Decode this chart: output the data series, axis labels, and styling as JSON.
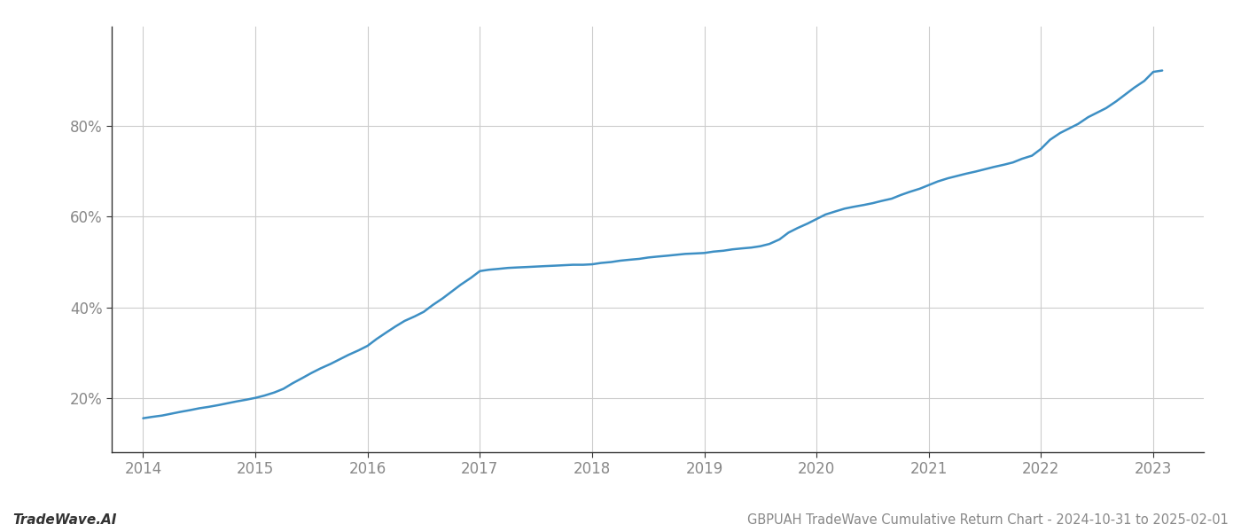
{
  "title": "GBPUAH TradeWave Cumulative Return Chart - 2024-10-31 to 2025-02-01",
  "watermark": "TradeWave.AI",
  "line_color": "#3d8fc4",
  "line_width": 1.8,
  "background_color": "#ffffff",
  "grid_color": "#cccccc",
  "x_years": [
    2014.0,
    2014.08,
    2014.17,
    2014.25,
    2014.33,
    2014.42,
    2014.5,
    2014.58,
    2014.67,
    2014.75,
    2014.83,
    2014.92,
    2015.0,
    2015.08,
    2015.17,
    2015.25,
    2015.33,
    2015.42,
    2015.5,
    2015.58,
    2015.67,
    2015.75,
    2015.83,
    2015.92,
    2016.0,
    2016.08,
    2016.17,
    2016.25,
    2016.33,
    2016.42,
    2016.5,
    2016.58,
    2016.67,
    2016.75,
    2016.83,
    2016.92,
    2017.0,
    2017.08,
    2017.17,
    2017.25,
    2017.33,
    2017.42,
    2017.5,
    2017.58,
    2017.67,
    2017.75,
    2017.83,
    2017.92,
    2018.0,
    2018.08,
    2018.17,
    2018.25,
    2018.33,
    2018.42,
    2018.5,
    2018.58,
    2018.67,
    2018.75,
    2018.83,
    2018.92,
    2019.0,
    2019.08,
    2019.17,
    2019.25,
    2019.33,
    2019.42,
    2019.5,
    2019.58,
    2019.67,
    2019.75,
    2019.83,
    2019.92,
    2020.0,
    2020.08,
    2020.17,
    2020.25,
    2020.33,
    2020.42,
    2020.5,
    2020.58,
    2020.67,
    2020.75,
    2020.83,
    2020.92,
    2021.0,
    2021.08,
    2021.17,
    2021.25,
    2021.33,
    2021.42,
    2021.5,
    2021.58,
    2021.67,
    2021.75,
    2021.83,
    2021.92,
    2022.0,
    2022.08,
    2022.17,
    2022.25,
    2022.33,
    2022.42,
    2022.5,
    2022.58,
    2022.67,
    2022.75,
    2022.83,
    2022.92,
    2023.0,
    2023.08
  ],
  "y_values": [
    15.5,
    15.8,
    16.1,
    16.5,
    16.9,
    17.3,
    17.7,
    18.0,
    18.4,
    18.8,
    19.2,
    19.6,
    20.0,
    20.5,
    21.2,
    22.0,
    23.2,
    24.4,
    25.5,
    26.5,
    27.5,
    28.5,
    29.5,
    30.5,
    31.5,
    33.0,
    34.5,
    35.8,
    37.0,
    38.0,
    39.0,
    40.5,
    42.0,
    43.5,
    45.0,
    46.5,
    48.0,
    48.3,
    48.5,
    48.7,
    48.8,
    48.9,
    49.0,
    49.1,
    49.2,
    49.3,
    49.4,
    49.4,
    49.5,
    49.8,
    50.0,
    50.3,
    50.5,
    50.7,
    51.0,
    51.2,
    51.4,
    51.6,
    51.8,
    51.9,
    52.0,
    52.3,
    52.5,
    52.8,
    53.0,
    53.2,
    53.5,
    54.0,
    55.0,
    56.5,
    57.5,
    58.5,
    59.5,
    60.5,
    61.2,
    61.8,
    62.2,
    62.6,
    63.0,
    63.5,
    64.0,
    64.8,
    65.5,
    66.2,
    67.0,
    67.8,
    68.5,
    69.0,
    69.5,
    70.0,
    70.5,
    71.0,
    71.5,
    72.0,
    72.8,
    73.5,
    75.0,
    77.0,
    78.5,
    79.5,
    80.5,
    82.0,
    83.0,
    84.0,
    85.5,
    87.0,
    88.5,
    90.0,
    92.0,
    92.3
  ],
  "yticks": [
    20,
    40,
    60,
    80
  ],
  "xticks": [
    2014,
    2015,
    2016,
    2017,
    2018,
    2019,
    2020,
    2021,
    2022,
    2023
  ],
  "xlim": [
    2013.72,
    2023.45
  ],
  "ylim": [
    8,
    102
  ],
  "tick_label_color": "#888888",
  "title_fontsize": 10.5,
  "watermark_fontsize": 11,
  "tick_fontsize": 12
}
